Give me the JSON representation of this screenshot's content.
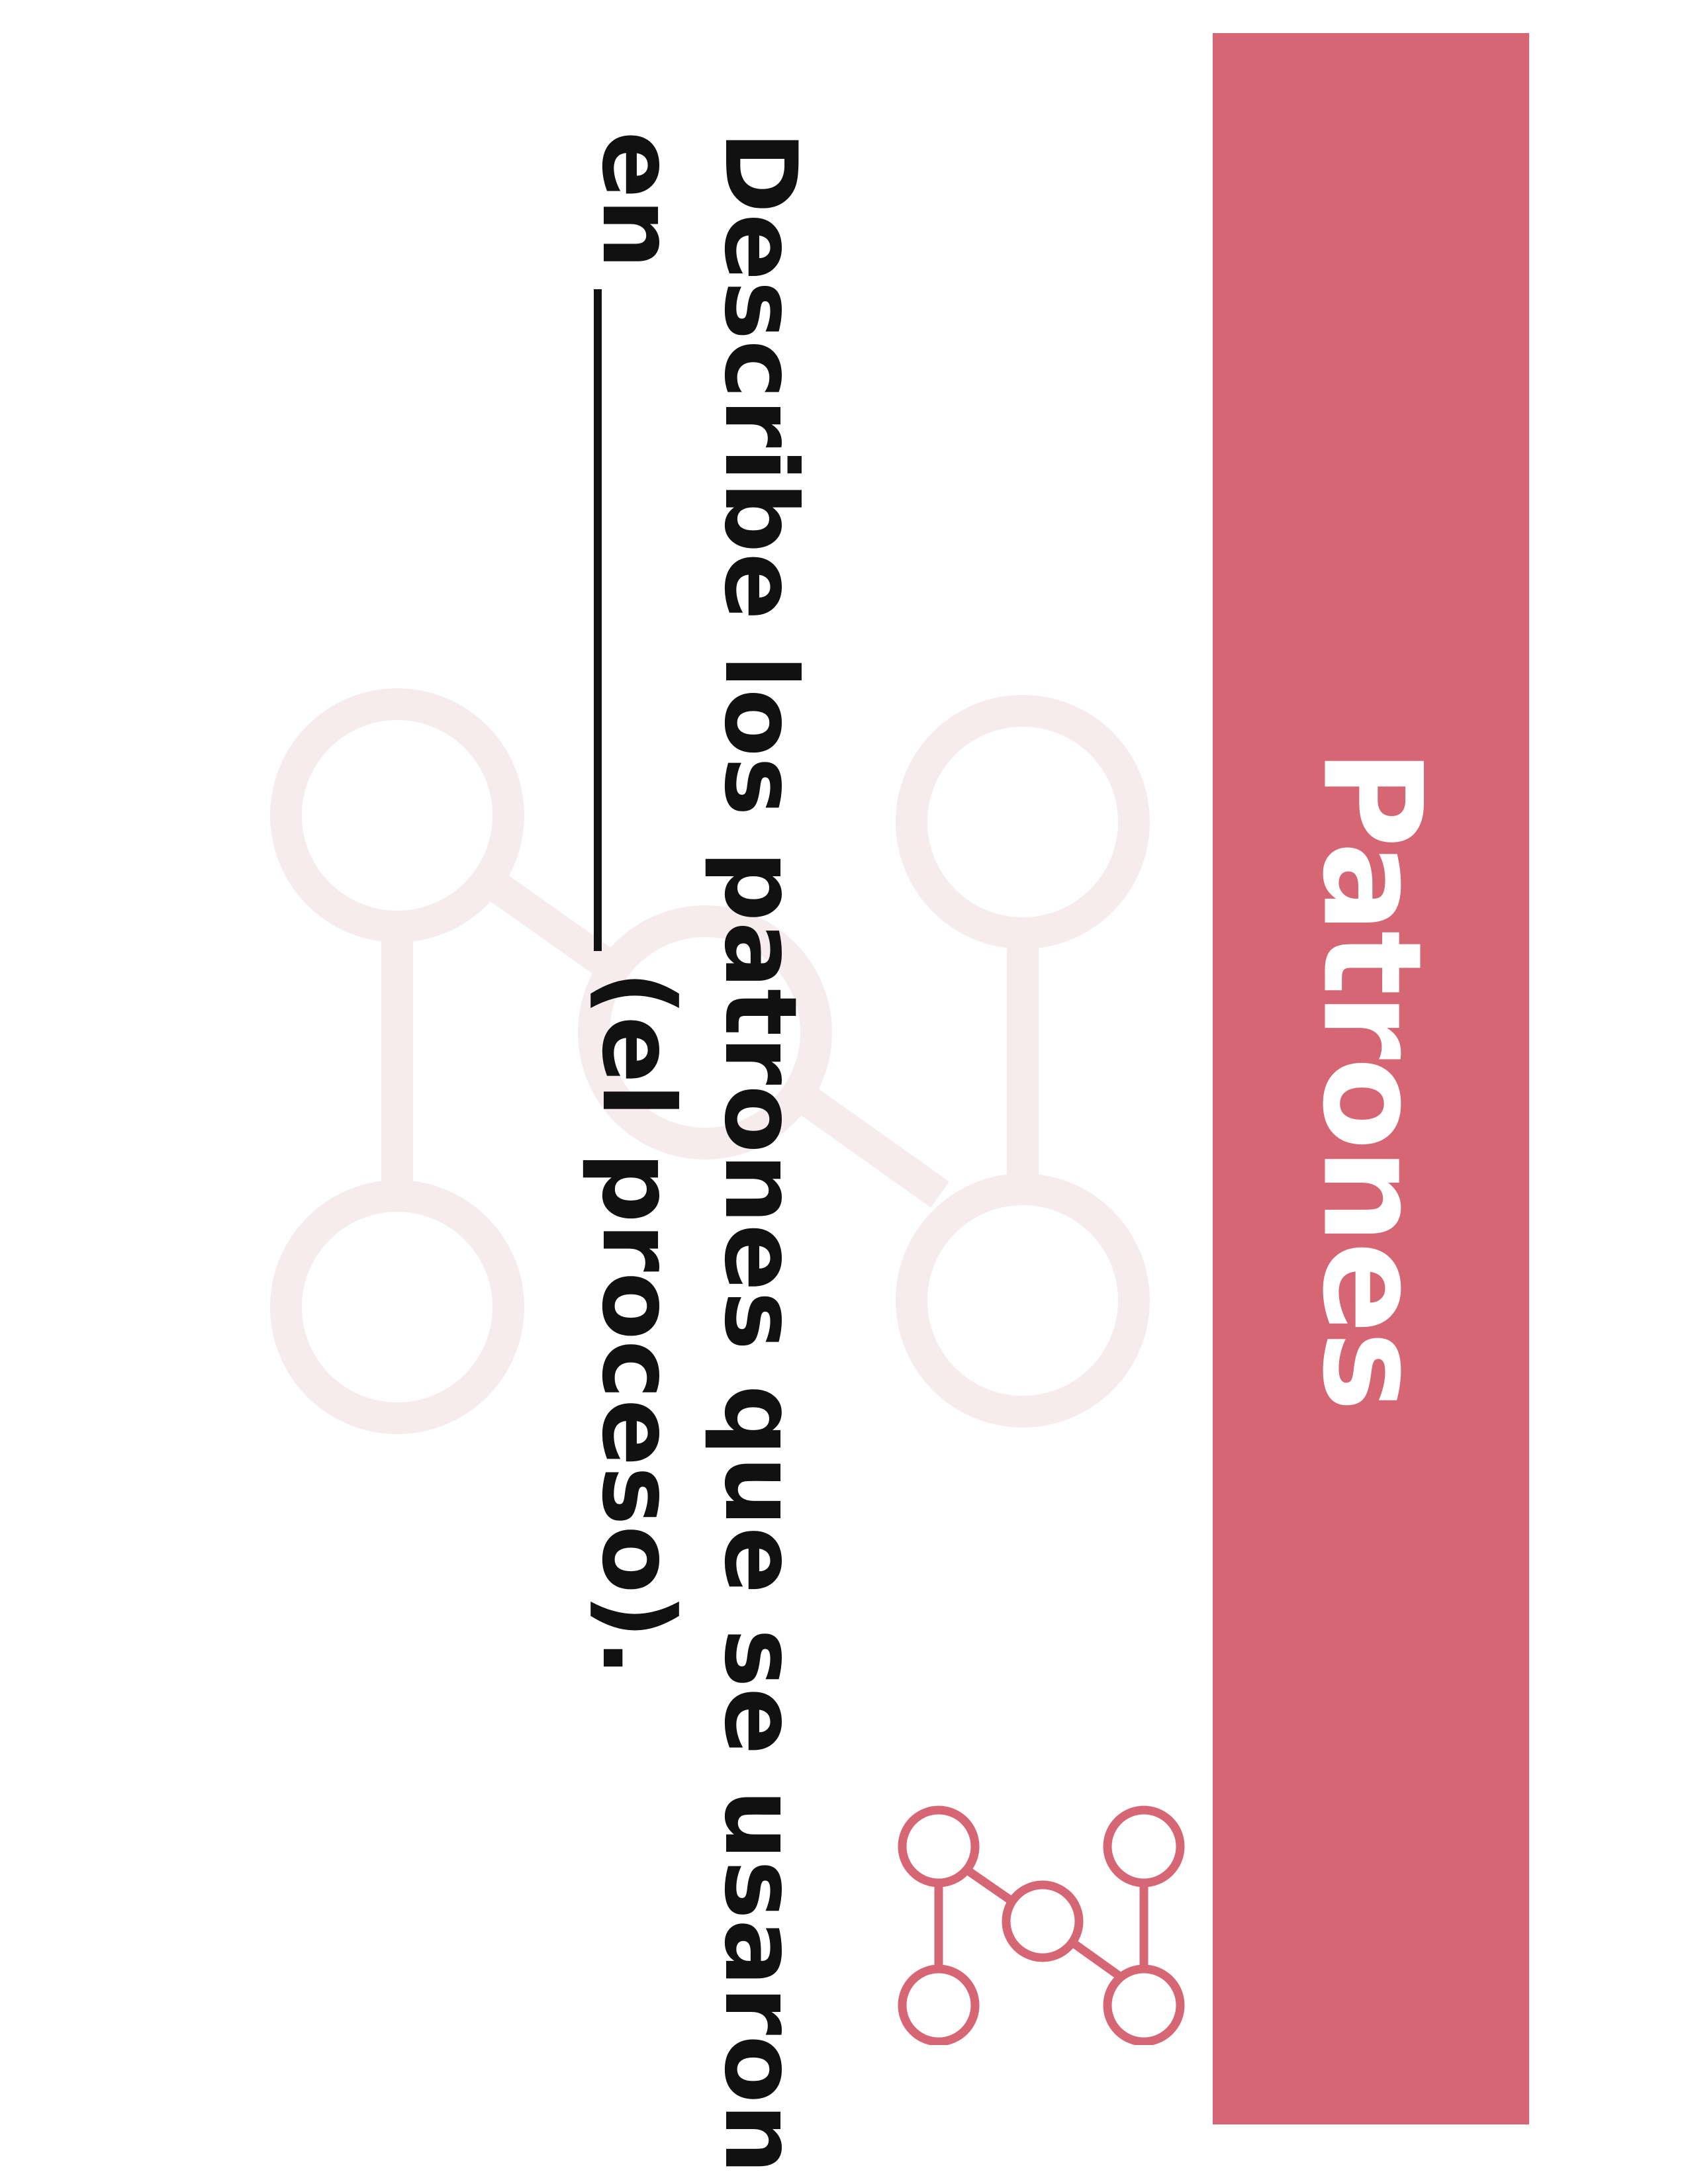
{
  "banner": {
    "title": "Patrones",
    "color": "#d66673"
  },
  "question": {
    "line1": "Describe los patrones que se usaron",
    "line2_before": "en",
    "line2_after": "(el proceso)."
  },
  "icons": {
    "background": "network-graph-icon",
    "small": "network-graph-icon"
  },
  "colors": {
    "accent": "#d66673",
    "watermark": "#f7eced",
    "text": "#111111"
  }
}
